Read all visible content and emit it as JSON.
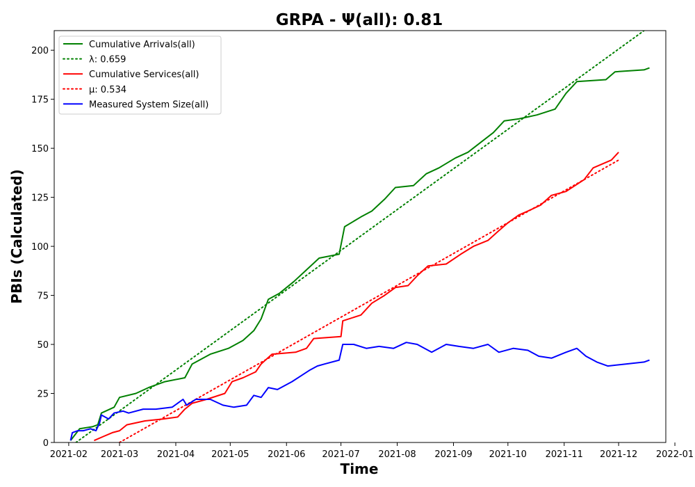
{
  "chart_data": {
    "type": "line",
    "title": "GRPA -  Ψ(all): 0.81",
    "xlabel": "Time",
    "ylabel": "PBIs (Calculated)",
    "xlim": [
      "2021-01-24",
      "2021-12-27"
    ],
    "ylim": [
      0,
      210
    ],
    "x_ticks": [
      "2021-02",
      "2021-03",
      "2021-04",
      "2021-05",
      "2021-06",
      "2021-07",
      "2021-08",
      "2021-09",
      "2021-10",
      "2021-11",
      "2021-12",
      "2022-01"
    ],
    "y_ticks": [
      0,
      25,
      50,
      75,
      100,
      125,
      150,
      175,
      200
    ],
    "grid": false,
    "legend_position": "upper-left",
    "series": [
      {
        "name": "Cumulative Arrivals(all)",
        "color": "#008000",
        "style": "solid",
        "points": [
          [
            "2021-02-02",
            1
          ],
          [
            "2021-02-07",
            7
          ],
          [
            "2021-02-14",
            8
          ],
          [
            "2021-02-17",
            9
          ],
          [
            "2021-02-19",
            15
          ],
          [
            "2021-02-26",
            18
          ],
          [
            "2021-03-01",
            23
          ],
          [
            "2021-03-10",
            25
          ],
          [
            "2021-03-17",
            28
          ],
          [
            "2021-03-26",
            31
          ],
          [
            "2021-04-06",
            33
          ],
          [
            "2021-04-10",
            40
          ],
          [
            "2021-04-20",
            45
          ],
          [
            "2021-04-30",
            48
          ],
          [
            "2021-05-08",
            52
          ],
          [
            "2021-05-14",
            57
          ],
          [
            "2021-05-18",
            63
          ],
          [
            "2021-05-22",
            73
          ],
          [
            "2021-05-28",
            76
          ],
          [
            "2021-06-05",
            82
          ],
          [
            "2021-06-12",
            88
          ],
          [
            "2021-06-19",
            94
          ],
          [
            "2021-06-30",
            96
          ],
          [
            "2021-07-03",
            110
          ],
          [
            "2021-07-12",
            115
          ],
          [
            "2021-07-18",
            118
          ],
          [
            "2021-07-25",
            124
          ],
          [
            "2021-07-31",
            130
          ],
          [
            "2021-08-10",
            131
          ],
          [
            "2021-08-17",
            137
          ],
          [
            "2021-08-24",
            140
          ],
          [
            "2021-09-02",
            145
          ],
          [
            "2021-09-09",
            148
          ],
          [
            "2021-09-16",
            153
          ],
          [
            "2021-09-23",
            158
          ],
          [
            "2021-09-29",
            164
          ],
          [
            "2021-10-07",
            165
          ],
          [
            "2021-10-17",
            167
          ],
          [
            "2021-10-27",
            170
          ],
          [
            "2021-11-02",
            178
          ],
          [
            "2021-11-08",
            184
          ],
          [
            "2021-11-24",
            185
          ],
          [
            "2021-11-29",
            189
          ],
          [
            "2021-12-15",
            190
          ],
          [
            "2021-12-18",
            191
          ]
        ]
      },
      {
        "name": "λ: 0.659",
        "color": "#008000",
        "style": "dotted",
        "points": [
          [
            "2021-02-05",
            0
          ],
          [
            "2021-12-15",
            210
          ]
        ]
      },
      {
        "name": "Cumulative Services(all)",
        "color": "#ff0000",
        "style": "solid",
        "points": [
          [
            "2021-02-15",
            1
          ],
          [
            "2021-02-20",
            3
          ],
          [
            "2021-02-25",
            5
          ],
          [
            "2021-03-01",
            6
          ],
          [
            "2021-03-05",
            9
          ],
          [
            "2021-03-15",
            11
          ],
          [
            "2021-03-25",
            12
          ],
          [
            "2021-04-02",
            13
          ],
          [
            "2021-04-06",
            17
          ],
          [
            "2021-04-10",
            20
          ],
          [
            "2021-04-18",
            22
          ],
          [
            "2021-04-28",
            25
          ],
          [
            "2021-05-02",
            31
          ],
          [
            "2021-05-08",
            33
          ],
          [
            "2021-05-15",
            36
          ],
          [
            "2021-05-18",
            40
          ],
          [
            "2021-05-24",
            45
          ],
          [
            "2021-06-06",
            46
          ],
          [
            "2021-06-12",
            48
          ],
          [
            "2021-06-16",
            53
          ],
          [
            "2021-07-01",
            54
          ],
          [
            "2021-07-02",
            62
          ],
          [
            "2021-07-12",
            65
          ],
          [
            "2021-07-18",
            71
          ],
          [
            "2021-07-25",
            75
          ],
          [
            "2021-07-31",
            79
          ],
          [
            "2021-08-07",
            80
          ],
          [
            "2021-08-12",
            85
          ],
          [
            "2021-08-18",
            90
          ],
          [
            "2021-08-28",
            91
          ],
          [
            "2021-09-05",
            96
          ],
          [
            "2021-09-12",
            100
          ],
          [
            "2021-09-20",
            103
          ],
          [
            "2021-09-26",
            108
          ],
          [
            "2021-10-01",
            112
          ],
          [
            "2021-10-07",
            116
          ],
          [
            "2021-10-12",
            118
          ],
          [
            "2021-10-19",
            121
          ],
          [
            "2021-10-25",
            126
          ],
          [
            "2021-11-02",
            128
          ],
          [
            "2021-11-12",
            134
          ],
          [
            "2021-11-17",
            140
          ],
          [
            "2021-11-27",
            144
          ],
          [
            "2021-12-01",
            148
          ]
        ]
      },
      {
        "name": "μ: 0.534",
        "color": "#ff0000",
        "style": "dotted",
        "points": [
          [
            "2021-03-01",
            0
          ],
          [
            "2021-12-01",
            144
          ]
        ]
      },
      {
        "name": "Measured System Size(all)",
        "color": "#0000ff",
        "style": "solid",
        "points": [
          [
            "2021-02-02",
            1
          ],
          [
            "2021-02-03",
            5
          ],
          [
            "2021-02-06",
            6
          ],
          [
            "2021-02-09",
            6
          ],
          [
            "2021-02-13",
            7
          ],
          [
            "2021-02-16",
            6
          ],
          [
            "2021-02-18",
            10
          ],
          [
            "2021-02-19",
            14
          ],
          [
            "2021-02-21",
            13
          ],
          [
            "2021-02-23",
            12
          ],
          [
            "2021-02-26",
            15
          ],
          [
            "2021-03-03",
            16
          ],
          [
            "2021-03-06",
            15
          ],
          [
            "2021-03-14",
            17
          ],
          [
            "2021-03-21",
            17
          ],
          [
            "2021-03-30",
            18
          ],
          [
            "2021-04-05",
            22
          ],
          [
            "2021-04-07",
            19
          ],
          [
            "2021-04-12",
            22
          ],
          [
            "2021-04-20",
            22
          ],
          [
            "2021-04-27",
            19
          ],
          [
            "2021-05-03",
            18
          ],
          [
            "2021-05-10",
            19
          ],
          [
            "2021-05-14",
            24
          ],
          [
            "2021-05-18",
            23
          ],
          [
            "2021-05-22",
            28
          ],
          [
            "2021-05-27",
            27
          ],
          [
            "2021-06-04",
            31
          ],
          [
            "2021-06-09",
            34
          ],
          [
            "2021-06-14",
            37
          ],
          [
            "2021-06-18",
            39
          ],
          [
            "2021-06-22",
            40
          ],
          [
            "2021-06-30",
            42
          ],
          [
            "2021-07-02",
            50
          ],
          [
            "2021-07-08",
            50
          ],
          [
            "2021-07-15",
            48
          ],
          [
            "2021-07-22",
            49
          ],
          [
            "2021-07-30",
            48
          ],
          [
            "2021-08-06",
            51
          ],
          [
            "2021-08-12",
            50
          ],
          [
            "2021-08-20",
            46
          ],
          [
            "2021-08-28",
            50
          ],
          [
            "2021-09-04",
            49
          ],
          [
            "2021-09-12",
            48
          ],
          [
            "2021-09-20",
            50
          ],
          [
            "2021-09-26",
            46
          ],
          [
            "2021-10-04",
            48
          ],
          [
            "2021-10-12",
            47
          ],
          [
            "2021-10-18",
            44
          ],
          [
            "2021-10-25",
            43
          ],
          [
            "2021-11-02",
            46
          ],
          [
            "2021-11-08",
            48
          ],
          [
            "2021-11-13",
            44
          ],
          [
            "2021-11-19",
            41
          ],
          [
            "2021-11-25",
            39
          ],
          [
            "2021-12-05",
            40
          ],
          [
            "2021-12-15",
            41
          ],
          [
            "2021-12-18",
            42
          ]
        ]
      }
    ]
  }
}
